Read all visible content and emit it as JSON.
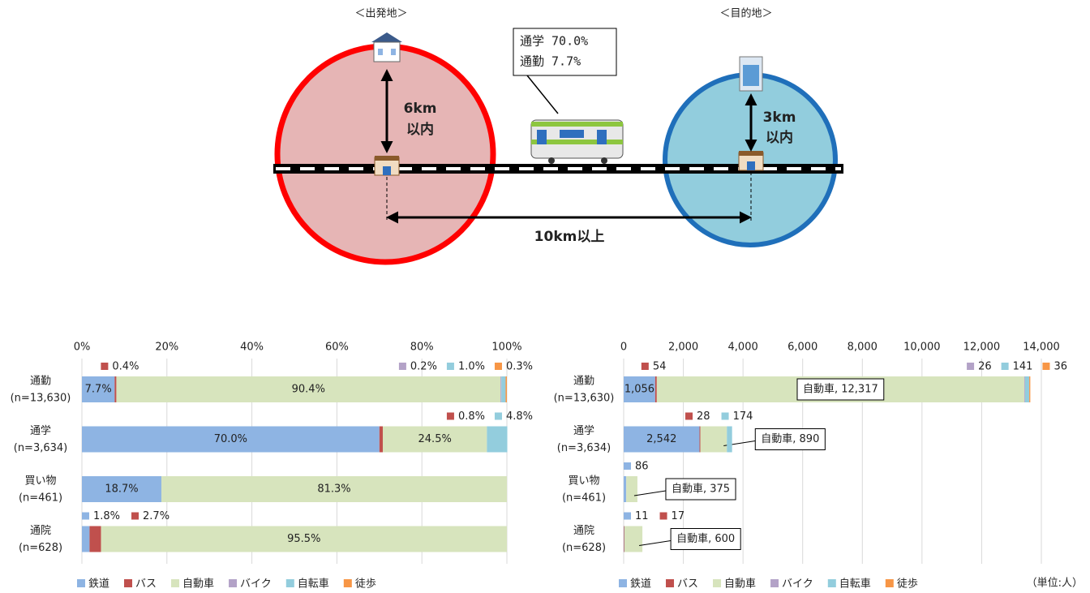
{
  "diagram": {
    "origin_label": "＜出発地＞",
    "destination_label": "＜目的地＞",
    "share_box": [
      "通学  70.0%",
      "通勤   7.7%"
    ],
    "origin_distance": [
      "6km",
      "以内"
    ],
    "destination_distance": [
      "3km",
      "以内"
    ],
    "station_distance": "10km以上"
  },
  "chart_data": [
    {
      "type": "bar",
      "orientation": "horizontal",
      "stacked": true,
      "grid": true,
      "legend": "bottom",
      "categories": [
        "通勤",
        "通学",
        "買い物",
        "通院"
      ],
      "category_notes": [
        "(n=13,630)",
        "(n=3,634)",
        "(n=461)",
        "(n=628)"
      ],
      "xlim": [
        0,
        100
      ],
      "xticks": [
        {
          "value": 0,
          "label": "0%"
        },
        {
          "value": 20,
          "label": "20%"
        },
        {
          "value": 40,
          "label": "40%"
        },
        {
          "value": 60,
          "label": "60%"
        },
        {
          "value": 80,
          "label": "80%"
        },
        {
          "value": 100,
          "label": "100%"
        }
      ],
      "series": [
        {
          "name": "鉄道",
          "color": "#8eb4e3",
          "values": [
            7.7,
            70.0,
            18.7,
            1.8
          ],
          "value_labels": [
            "7.7%",
            "70.0%",
            "18.7%",
            "1.8%"
          ]
        },
        {
          "name": "バス",
          "color": "#c0504d",
          "values": [
            0.4,
            0.8,
            0,
            2.7
          ],
          "value_labels": [
            "0.4%",
            "0.8%",
            null,
            "2.7%"
          ]
        },
        {
          "name": "自動車",
          "color": "#d7e4bd",
          "values": [
            90.4,
            24.5,
            81.3,
            95.5
          ],
          "value_labels": [
            "90.4%",
            "24.5%",
            "81.3%",
            "95.5%"
          ]
        },
        {
          "name": "バイク",
          "color": "#b3a2c7",
          "values": [
            0.2,
            0,
            0,
            0
          ],
          "value_labels": [
            "0.2%",
            null,
            null,
            null
          ]
        },
        {
          "name": "自転車",
          "color": "#93cddd",
          "values": [
            1.0,
            4.8,
            0,
            0
          ],
          "value_labels": [
            "1.0%",
            "4.8%",
            null,
            null
          ]
        },
        {
          "name": "徒歩",
          "color": "#f79646",
          "values": [
            0.3,
            0,
            0,
            0
          ],
          "value_labels": [
            "0.3%",
            null,
            null,
            null
          ]
        }
      ]
    },
    {
      "type": "bar",
      "orientation": "horizontal",
      "stacked": true,
      "grid": true,
      "legend": "bottom",
      "unit_label": "（単位:人）",
      "categories": [
        "通勤",
        "通学",
        "買い物",
        "通院"
      ],
      "category_notes": [
        "(n=13,630)",
        "(n=3,634)",
        "(n=461)",
        "(n=628)"
      ],
      "xlim": [
        0,
        14000
      ],
      "xticks": [
        0,
        {
          "value": 2000,
          "label": "2,000"
        },
        {
          "value": 4000,
          "label": "4,000"
        },
        {
          "value": 6000,
          "label": "6,000"
        },
        {
          "value": 8000,
          "label": "8,000"
        },
        {
          "value": 10000,
          "label": "10,000"
        },
        {
          "value": 12000,
          "label": "12,000"
        },
        {
          "value": 14000,
          "label": "14,000"
        }
      ],
      "series": [
        {
          "name": "鉄道",
          "color": "#8eb4e3",
          "values": [
            1056,
            2542,
            86,
            11
          ],
          "value_labels": [
            "1,056",
            "2,542",
            "86",
            "11"
          ]
        },
        {
          "name": "バス",
          "color": "#c0504d",
          "values": [
            54,
            28,
            0,
            17
          ],
          "value_labels": [
            "54",
            "28",
            null,
            "17"
          ]
        },
        {
          "name": "自動車",
          "color": "#d7e4bd",
          "values": [
            12317,
            890,
            375,
            600
          ],
          "value_labels": [
            "自動車, 12,317",
            "自動車, 890",
            "自動車, 375",
            "自動車, 600"
          ],
          "label_callout": true
        },
        {
          "name": "バイク",
          "color": "#b3a2c7",
          "values": [
            26,
            0,
            0,
            0
          ],
          "value_labels": [
            "26",
            null,
            null,
            null
          ]
        },
        {
          "name": "自転車",
          "color": "#93cddd",
          "values": [
            141,
            174,
            0,
            0
          ],
          "value_labels": [
            "141",
            "174",
            null,
            null
          ]
        },
        {
          "name": "徒歩",
          "color": "#f79646",
          "values": [
            36,
            0,
            0,
            0
          ],
          "value_labels": [
            "36",
            null,
            null,
            null
          ]
        }
      ]
    }
  ]
}
